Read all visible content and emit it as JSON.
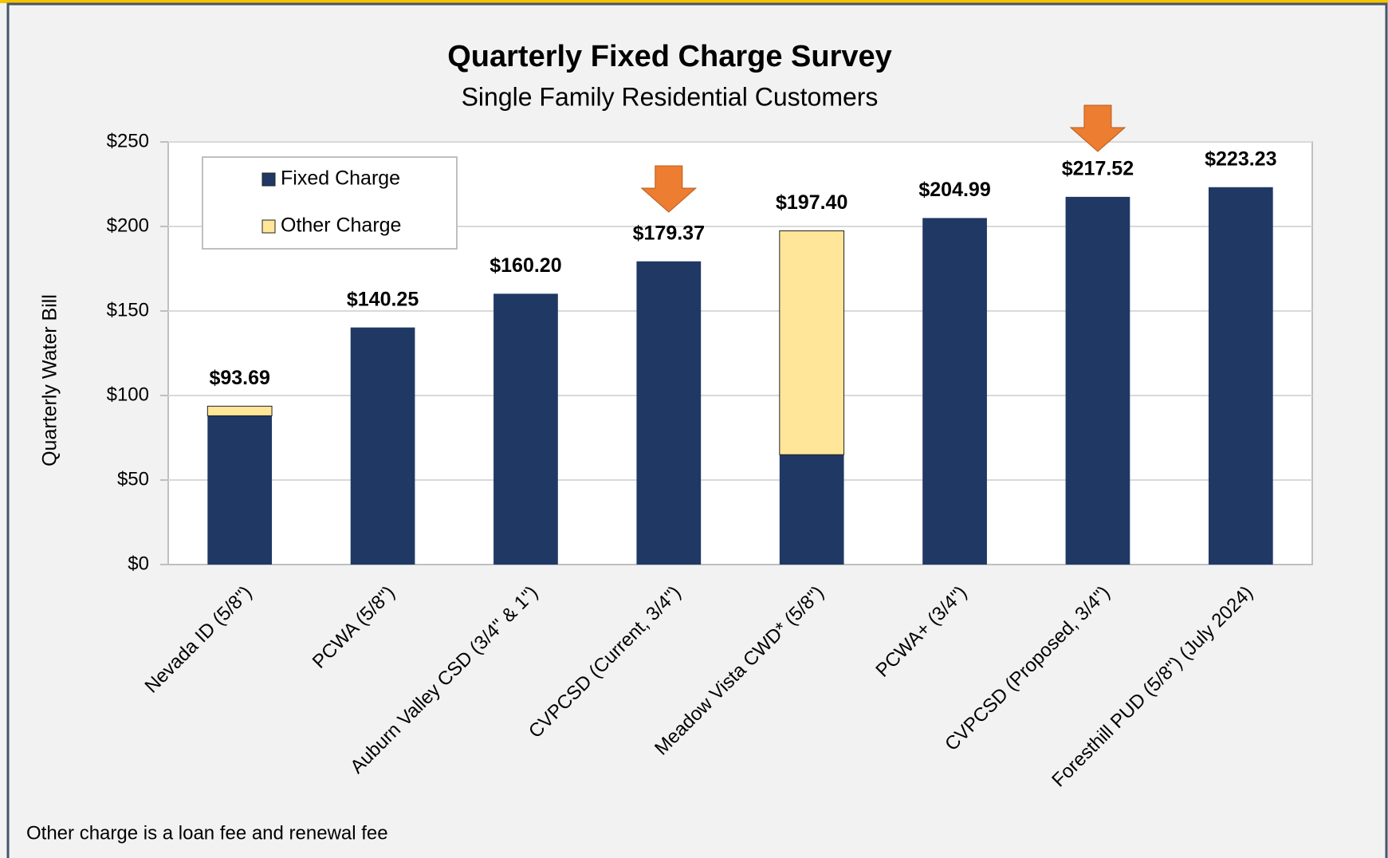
{
  "chart_data": {
    "type": "stacked_bar",
    "title": "Quarterly Fixed Charge Survey",
    "subtitle": "Single Family Residential Customers",
    "y_label": "Quarterly Water Bill",
    "note": "Other charge is a loan fee and renewal fee",
    "categories": [
      "Nevada ID (5/8\")",
      "PCWA (5/8\")",
      "Auburn Valley CSD (3/4\" & 1\")",
      "CVPCSD (Current, 3/4\")",
      "Meadow Vista CWD* (5/8\")",
      "PCWA+ (3/4\")",
      "CVPCSD (Proposed, 3/4\")",
      "Foresthill PUD (5/8\") (July 2024)"
    ],
    "series": [
      {
        "name": "Fixed Charge",
        "color": "#203864",
        "values": [
          88,
          140.25,
          160.2,
          179.37,
          65,
          204.99,
          217.52,
          223.23
        ]
      },
      {
        "name": "Other Charge",
        "color": "#ffe699",
        "values": [
          5.69,
          0,
          0,
          0,
          132.4,
          0,
          0,
          0
        ]
      }
    ],
    "totals": [
      93.69,
      140.25,
      160.2,
      179.37,
      197.4,
      204.99,
      217.52,
      223.23
    ],
    "total_labels": [
      "$93.69",
      "$140.25",
      "$160.20",
      "$179.37",
      "$197.40",
      "$204.99",
      "$217.52",
      "$223.23"
    ],
    "ylim": [
      0,
      250
    ],
    "yticks": [
      {
        "value": 0,
        "label": "$0"
      },
      {
        "value": 50,
        "label": "$50"
      },
      {
        "value": 100,
        "label": "$100"
      },
      {
        "value": 150,
        "label": "$150"
      },
      {
        "value": 200,
        "label": "$200"
      },
      {
        "value": 250,
        "label": "$250"
      }
    ],
    "grid": true,
    "legend": "top-left"
  }
}
